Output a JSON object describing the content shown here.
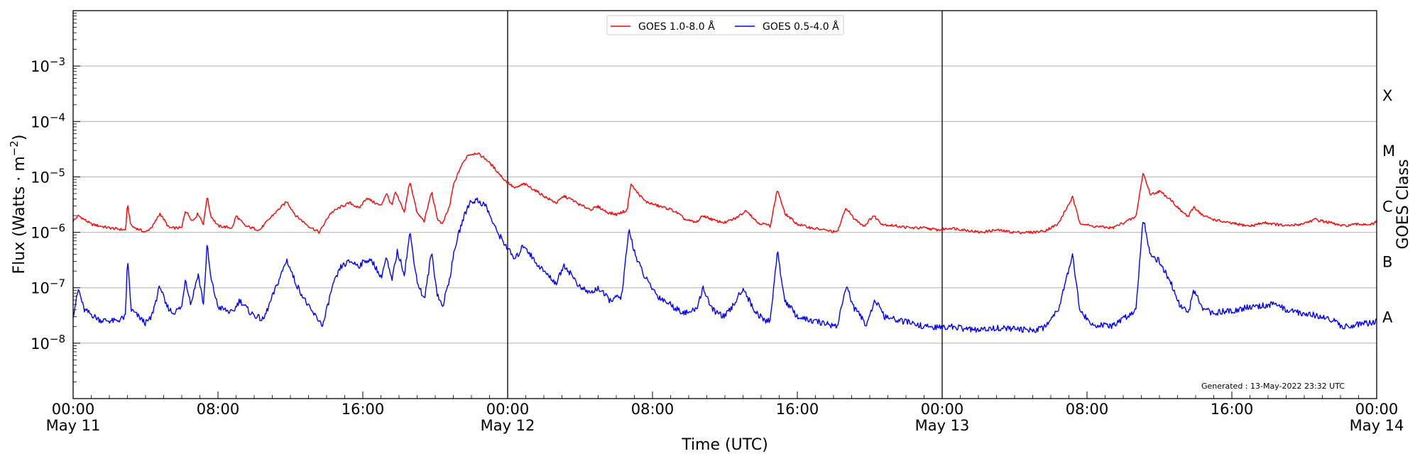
{
  "chart_data": {
    "type": "line",
    "xlabel": "Time (UTC)",
    "ylabel": "Flux (Watts · m",
    "ylabel_exponent": "−2",
    "ylabel_close": ")",
    "right_label": "GOES Class",
    "ylim": [
      1e-09,
      0.01
    ],
    "y_scale": "log",
    "x_range_hours": [
      0,
      72
    ],
    "y_ticks": [
      {
        "value": 1e-08,
        "base": "10",
        "exp": "−8"
      },
      {
        "value": 1e-07,
        "base": "10",
        "exp": "−7"
      },
      {
        "value": 1e-06,
        "base": "10",
        "exp": "−6"
      },
      {
        "value": 1e-05,
        "base": "10",
        "exp": "−5"
      },
      {
        "value": 0.0001,
        "base": "10",
        "exp": "−4"
      },
      {
        "value": 0.001,
        "base": "10",
        "exp": "−3"
      }
    ],
    "x_ticks": [
      {
        "hour": 0,
        "time": "00:00",
        "date": "May 11"
      },
      {
        "hour": 8,
        "time": "08:00",
        "date": ""
      },
      {
        "hour": 16,
        "time": "16:00",
        "date": ""
      },
      {
        "hour": 24,
        "time": "00:00",
        "date": "May 12"
      },
      {
        "hour": 32,
        "time": "08:00",
        "date": ""
      },
      {
        "hour": 40,
        "time": "16:00",
        "date": ""
      },
      {
        "hour": 48,
        "time": "00:00",
        "date": "May 13"
      },
      {
        "hour": 56,
        "time": "08:00",
        "date": ""
      },
      {
        "hour": 64,
        "time": "16:00",
        "date": ""
      },
      {
        "hour": 72,
        "time": "00:00",
        "date": "May 14"
      }
    ],
    "day_boundaries_hours": [
      24,
      48
    ],
    "goes_classes": [
      {
        "label": "A",
        "value": 3e-08
      },
      {
        "label": "B",
        "value": 3e-07
      },
      {
        "label": "C",
        "value": 3e-06
      },
      {
        "label": "M",
        "value": 3e-05
      },
      {
        "label": "X",
        "value": 0.0003
      }
    ],
    "grid": true,
    "legend_placement": "top-center",
    "generated_text": "Generated : 13-May-2022 23:32 UTC",
    "series": [
      {
        "name": "GOES 1.0-8.0 Å",
        "color": "#ff0000",
        "baseline": 1.2e-06,
        "points": [
          [
            0,
            1.6e-06
          ],
          [
            0.3,
            2e-06
          ],
          [
            1,
            1.4e-06
          ],
          [
            2,
            1.2e-06
          ],
          [
            2.9,
            1.1e-06
          ],
          [
            3,
            3.2e-06
          ],
          [
            3.2,
            1.3e-06
          ],
          [
            4,
            1e-06
          ],
          [
            4.4,
            1.3e-06
          ],
          [
            4.8,
            2.2e-06
          ],
          [
            5.3,
            1.2e-06
          ],
          [
            6,
            1.2e-06
          ],
          [
            6.2,
            2.5e-06
          ],
          [
            6.6,
            1.6e-06
          ],
          [
            6.9,
            2.2e-06
          ],
          [
            7.2,
            1.4e-06
          ],
          [
            7.4,
            4.5e-06
          ],
          [
            7.6,
            2e-06
          ],
          [
            8,
            1.3e-06
          ],
          [
            8.8,
            1.2e-06
          ],
          [
            9,
            2e-06
          ],
          [
            9.5,
            1.3e-06
          ],
          [
            10.3,
            1.1e-06
          ],
          [
            11,
            2e-06
          ],
          [
            11.8,
            3.6e-06
          ],
          [
            12.3,
            2e-06
          ],
          [
            13,
            1.3e-06
          ],
          [
            13.6,
            1e-06
          ],
          [
            14.2,
            2.2e-06
          ],
          [
            14.8,
            2.9e-06
          ],
          [
            15.3,
            3.4e-06
          ],
          [
            15.8,
            2.7e-06
          ],
          [
            16.2,
            4.2e-06
          ],
          [
            16.6,
            3.5e-06
          ],
          [
            17,
            3e-06
          ],
          [
            17.3,
            5.1e-06
          ],
          [
            17.6,
            3e-06
          ],
          [
            17.8,
            5.3e-06
          ],
          [
            18.3,
            2.3e-06
          ],
          [
            18.6,
            8.5e-06
          ],
          [
            19,
            2.2e-06
          ],
          [
            19.4,
            1.6e-06
          ],
          [
            19.8,
            5.5e-06
          ],
          [
            20.1,
            1.8e-06
          ],
          [
            20.4,
            1.4e-06
          ],
          [
            20.8,
            3e-06
          ],
          [
            21,
            7e-06
          ],
          [
            21.4,
            1.5e-05
          ],
          [
            21.8,
            2.5e-05
          ],
          [
            22.3,
            2.7e-05
          ],
          [
            22.8,
            2.1e-05
          ],
          [
            23.3,
            1.4e-05
          ],
          [
            23.8,
            9e-06
          ],
          [
            24.4,
            6.2e-06
          ],
          [
            24.9,
            7.5e-06
          ],
          [
            25.5,
            5.8e-06
          ],
          [
            26.2,
            4.1e-06
          ],
          [
            26.7,
            3.4e-06
          ],
          [
            27.1,
            4.5e-06
          ],
          [
            27.6,
            3.8e-06
          ],
          [
            28,
            3.1e-06
          ],
          [
            28.6,
            2.6e-06
          ],
          [
            29,
            2.9e-06
          ],
          [
            29.5,
            2.3e-06
          ],
          [
            30,
            2.1e-06
          ],
          [
            30.6,
            2.5e-06
          ],
          [
            30.8,
            7.5e-06
          ],
          [
            31.1,
            5.5e-06
          ],
          [
            31.6,
            3.6e-06
          ],
          [
            32.3,
            3e-06
          ],
          [
            33,
            2.6e-06
          ],
          [
            33.4,
            2.2e-06
          ],
          [
            33.8,
            1.7e-06
          ],
          [
            34.4,
            1.5e-06
          ],
          [
            34.8,
            2e-06
          ],
          [
            35.5,
            1.6e-06
          ],
          [
            36,
            1.5e-06
          ],
          [
            36.6,
            1.8e-06
          ],
          [
            37.2,
            2.5e-06
          ],
          [
            37.8,
            1.5e-06
          ],
          [
            38.2,
            1.4e-06
          ],
          [
            38.5,
            1.3e-06
          ],
          [
            38.9,
            6e-06
          ],
          [
            39.3,
            2.2e-06
          ],
          [
            40,
            1.4e-06
          ],
          [
            40.8,
            1.2e-06
          ],
          [
            41.5,
            1.1e-06
          ],
          [
            42.2,
            1e-06
          ],
          [
            42.7,
            2.8e-06
          ],
          [
            43.1,
            1.8e-06
          ],
          [
            43.7,
            1.3e-06
          ],
          [
            44.2,
            2e-06
          ],
          [
            44.7,
            1.4e-06
          ],
          [
            45.5,
            1.3e-06
          ],
          [
            46.3,
            1.2e-06
          ],
          [
            47,
            1.2e-06
          ],
          [
            47.8,
            1.1e-06
          ],
          [
            48.5,
            1.2e-06
          ],
          [
            49.3,
            1.1e-06
          ],
          [
            50.1,
            1e-06
          ],
          [
            51,
            1.1e-06
          ],
          [
            52,
            1e-06
          ],
          [
            52.9,
            1e-06
          ],
          [
            53.6,
            1.05e-06
          ],
          [
            54.4,
            1.4e-06
          ],
          [
            55.2,
            4.3e-06
          ],
          [
            55.6,
            1.5e-06
          ],
          [
            56.2,
            1.3e-06
          ],
          [
            57.4,
            1.2e-06
          ],
          [
            58.7,
            1.9e-06
          ],
          [
            59.1,
            1.2e-05
          ],
          [
            59.5,
            4.8e-06
          ],
          [
            60,
            5.5e-06
          ],
          [
            60.6,
            4e-06
          ],
          [
            61.1,
            2.6e-06
          ],
          [
            61.6,
            1.9e-06
          ],
          [
            61.9,
            2.9e-06
          ],
          [
            62.4,
            2e-06
          ],
          [
            63,
            1.7e-06
          ],
          [
            63.7,
            1.5e-06
          ],
          [
            64.3,
            1.4e-06
          ],
          [
            65,
            1.3e-06
          ],
          [
            65.8,
            1.5e-06
          ],
          [
            66.4,
            1.4e-06
          ],
          [
            67,
            1.3e-06
          ],
          [
            67.8,
            1.4e-06
          ],
          [
            68.6,
            1.7e-06
          ],
          [
            69.4,
            1.5e-06
          ],
          [
            70.1,
            1.3e-06
          ],
          [
            71,
            1.4e-06
          ],
          [
            71.8,
            1.4e-06
          ],
          [
            72,
            1.6e-06
          ]
        ]
      },
      {
        "name": "GOES 0.5-4.0 Å",
        "color": "#0000ff",
        "baseline": 3e-08,
        "points": [
          [
            0,
            3.2e-08
          ],
          [
            0.3,
            9.5e-08
          ],
          [
            0.6,
            4e-08
          ],
          [
            1.5,
            2.6e-08
          ],
          [
            2.4,
            2.5e-08
          ],
          [
            2.9,
            3e-08
          ],
          [
            3,
            3.8e-07
          ],
          [
            3.2,
            4e-08
          ],
          [
            4,
            2.3e-08
          ],
          [
            4.3,
            2.8e-08
          ],
          [
            4.8,
            1.1e-07
          ],
          [
            5.1,
            5e-08
          ],
          [
            5.5,
            3.5e-08
          ],
          [
            6,
            4.5e-08
          ],
          [
            6.2,
            1.5e-07
          ],
          [
            6.5,
            5e-08
          ],
          [
            6.9,
            1.8e-07
          ],
          [
            7.2,
            5e-08
          ],
          [
            7.4,
            6e-07
          ],
          [
            7.6,
            1.5e-07
          ],
          [
            8,
            4.5e-08
          ],
          [
            8.8,
            3.5e-08
          ],
          [
            9.2,
            6e-08
          ],
          [
            9.8,
            3.5e-08
          ],
          [
            10.5,
            2.6e-08
          ],
          [
            11.2,
            1e-07
          ],
          [
            11.8,
            3.2e-07
          ],
          [
            12.3,
            1.2e-07
          ],
          [
            13.1,
            4e-08
          ],
          [
            13.8,
            2.1e-08
          ],
          [
            14.3,
            1e-07
          ],
          [
            14.8,
            2.4e-07
          ],
          [
            15.3,
            3e-07
          ],
          [
            15.8,
            2.5e-07
          ],
          [
            16.2,
            3.2e-07
          ],
          [
            16.6,
            2.8e-07
          ],
          [
            17,
            1.5e-07
          ],
          [
            17.3,
            3.5e-07
          ],
          [
            17.6,
            1.3e-07
          ],
          [
            17.9,
            4.5e-07
          ],
          [
            18.3,
            1.8e-07
          ],
          [
            18.6,
            1e-06
          ],
          [
            19,
            1.3e-07
          ],
          [
            19.4,
            6e-08
          ],
          [
            19.8,
            4.5e-07
          ],
          [
            20.1,
            8e-08
          ],
          [
            20.4,
            4.5e-08
          ],
          [
            20.8,
            1.5e-07
          ],
          [
            21.1,
            5.5e-07
          ],
          [
            21.5,
            1.6e-06
          ],
          [
            21.9,
            3.5e-06
          ],
          [
            22.3,
            3.8e-06
          ],
          [
            22.8,
            3e-06
          ],
          [
            23.3,
            1.2e-06
          ],
          [
            23.8,
            6.5e-07
          ],
          [
            24.4,
            3.2e-07
          ],
          [
            24.9,
            6e-07
          ],
          [
            25.5,
            3e-07
          ],
          [
            26.2,
            1.7e-07
          ],
          [
            26.7,
            1.2e-07
          ],
          [
            27.1,
            2.6e-07
          ],
          [
            27.6,
            1.6e-07
          ],
          [
            28,
            1e-07
          ],
          [
            28.6,
            8e-08
          ],
          [
            29,
            1e-07
          ],
          [
            29.6,
            6e-08
          ],
          [
            30.3,
            7e-08
          ],
          [
            30.7,
            1.1e-06
          ],
          [
            31.1,
            3.5e-07
          ],
          [
            31.6,
            1.5e-07
          ],
          [
            32.3,
            7e-08
          ],
          [
            33,
            5e-08
          ],
          [
            33.4,
            4e-08
          ],
          [
            33.9,
            3.5e-08
          ],
          [
            34.4,
            4e-08
          ],
          [
            34.8,
            1e-07
          ],
          [
            35.3,
            4e-08
          ],
          [
            36,
            3e-08
          ],
          [
            36.5,
            5e-08
          ],
          [
            37,
            1e-07
          ],
          [
            37.6,
            4e-08
          ],
          [
            38.2,
            2.5e-08
          ],
          [
            38.5,
            2.6e-08
          ],
          [
            38.9,
            4.5e-07
          ],
          [
            39.3,
            6e-08
          ],
          [
            40,
            3e-08
          ],
          [
            40.8,
            2.5e-08
          ],
          [
            41.5,
            2.3e-08
          ],
          [
            42.2,
            2e-08
          ],
          [
            42.7,
            1.1e-07
          ],
          [
            43.1,
            4.5e-08
          ],
          [
            43.8,
            2.2e-08
          ],
          [
            44.3,
            6e-08
          ],
          [
            44.8,
            3e-08
          ],
          [
            45.5,
            2.6e-08
          ],
          [
            46.3,
            2.3e-08
          ],
          [
            47,
            2e-08
          ],
          [
            47.8,
            1.9e-08
          ],
          [
            48.5,
            2e-08
          ],
          [
            49.3,
            1.8e-08
          ],
          [
            50.1,
            1.7e-08
          ],
          [
            51,
            1.9e-08
          ],
          [
            52,
            1.8e-08
          ],
          [
            52.9,
            1.7e-08
          ],
          [
            53.6,
            1.9e-08
          ],
          [
            54.4,
            4e-08
          ],
          [
            55.2,
            4e-07
          ],
          [
            55.6,
            4e-08
          ],
          [
            56.2,
            2.2e-08
          ],
          [
            57.4,
            2e-08
          ],
          [
            58.7,
            4e-08
          ],
          [
            59.1,
            1.9e-06
          ],
          [
            59.5,
            4e-07
          ],
          [
            60,
            3e-07
          ],
          [
            60.6,
            1.3e-07
          ],
          [
            61.1,
            5e-08
          ],
          [
            61.6,
            3.5e-08
          ],
          [
            61.9,
            9e-08
          ],
          [
            62.4,
            4e-08
          ],
          [
            63,
            3.5e-08
          ],
          [
            63.7,
            3.8e-08
          ],
          [
            64.3,
            4e-08
          ],
          [
            65,
            4.5e-08
          ],
          [
            65.8,
            4.8e-08
          ],
          [
            66.4,
            5e-08
          ],
          [
            67,
            4e-08
          ],
          [
            67.8,
            3.5e-08
          ],
          [
            68.6,
            3.2e-08
          ],
          [
            69.4,
            2.8e-08
          ],
          [
            70.1,
            2e-08
          ],
          [
            71,
            2.2e-08
          ],
          [
            71.8,
            2.3e-08
          ],
          [
            72,
            2.5e-08
          ]
        ]
      }
    ]
  }
}
